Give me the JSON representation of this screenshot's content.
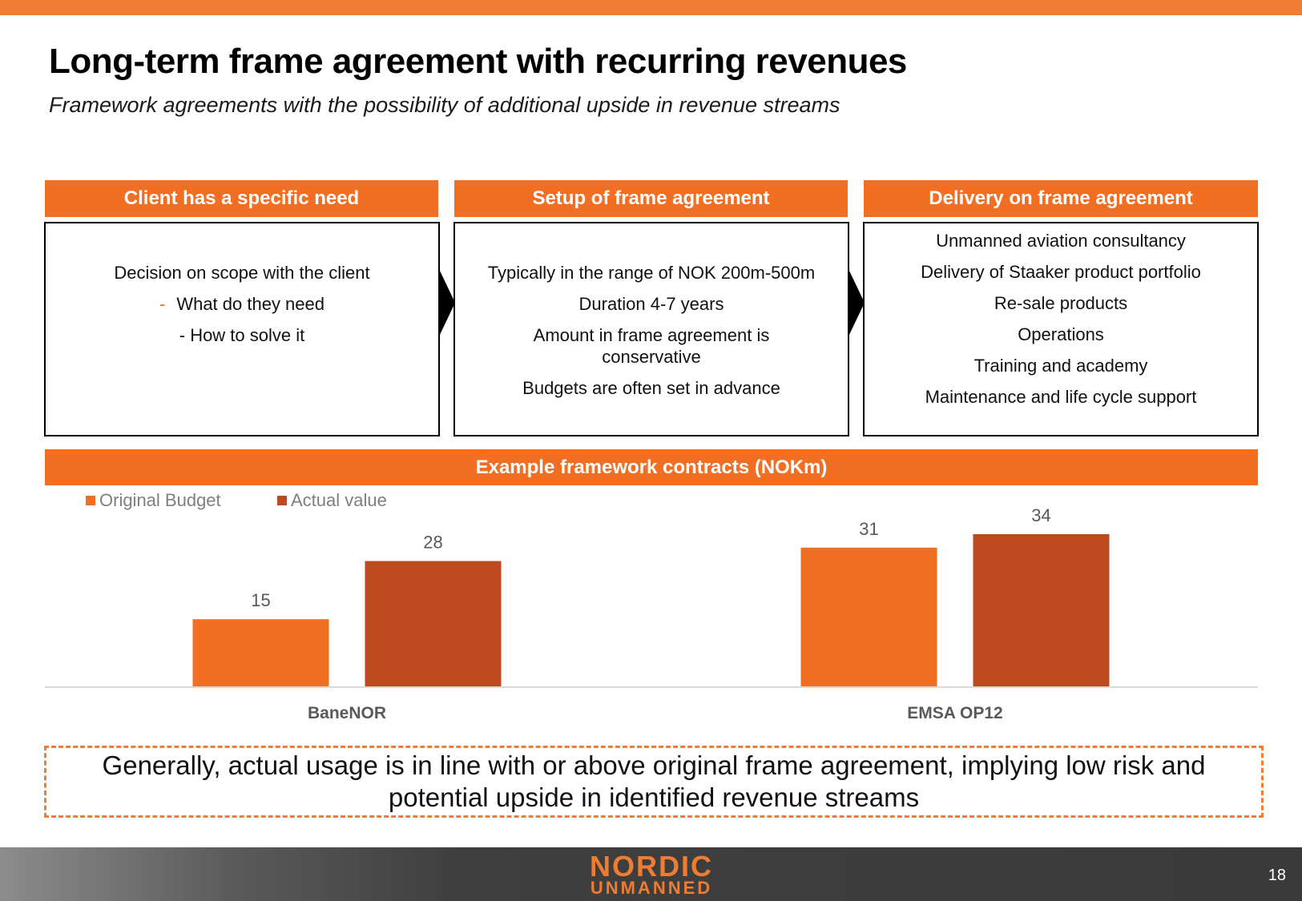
{
  "header": {
    "title": "Long-term frame agreement with recurring revenues",
    "subtitle": "Framework agreements with the possibility of additional upside in revenue streams"
  },
  "columns": [
    {
      "heading": "Client has a specific need",
      "lines": [
        "Decision on scope with the client",
        "What do they need",
        "- How to solve it"
      ]
    },
    {
      "heading": "Setup of frame agreement",
      "lines": [
        "Typically in the range of NOK 200m-500m",
        "Duration 4-7 years",
        "Amount in frame agreement is conservative",
        "Budgets are often set in advance"
      ]
    },
    {
      "heading": "Delivery on frame agreement",
      "lines": [
        "Unmanned aviation consultancy",
        "Delivery of Staaker product portfolio",
        "Re-sale products",
        "Operations",
        "Training and academy",
        "Maintenance and life cycle support"
      ]
    }
  ],
  "chart_data": {
    "type": "bar",
    "title": "Example framework contracts (NOKm)",
    "categories": [
      "BaneNOR",
      "EMSA OP12"
    ],
    "series": [
      {
        "name": "Original Budget",
        "values": [
          15,
          31
        ],
        "color": "#f26e23"
      },
      {
        "name": "Actual value",
        "values": [
          28,
          34
        ],
        "color": "#bd4a1f"
      }
    ],
    "legend": "top-left",
    "grid": false,
    "ylim": [
      0,
      34
    ]
  },
  "callout": "Generally, actual usage is in line with or above original frame agreement, implying low risk and potential upside in identified revenue streams",
  "footer": {
    "logo_line1": "NORDIC",
    "logo_line2": "UNMANNED",
    "page_number": "18"
  },
  "colors": {
    "accent": "#f26e23",
    "accent_dark": "#bd4a1f",
    "top_bar": "#ee7d31"
  }
}
